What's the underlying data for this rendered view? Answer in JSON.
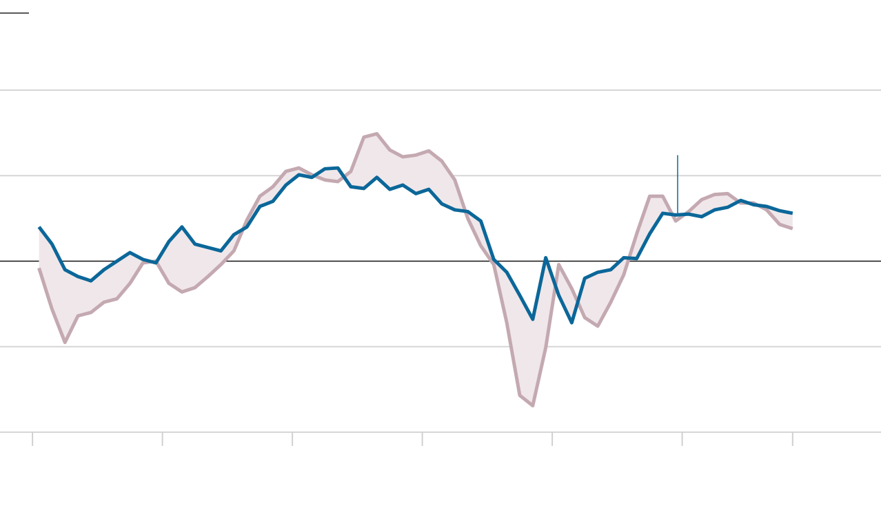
{
  "chart_data": {
    "type": "line",
    "x": [
      1,
      3,
      5,
      7,
      9,
      11,
      13,
      15,
      17,
      19,
      21,
      23,
      25,
      27,
      29,
      31,
      33,
      35,
      37,
      39,
      41,
      43,
      45,
      47,
      49,
      51,
      53,
      55,
      57,
      59,
      61,
      63,
      65,
      67,
      69,
      71,
      73,
      75,
      77,
      79,
      81,
      83,
      85,
      87,
      89,
      91,
      93,
      95,
      97,
      99,
      101,
      103,
      105,
      107,
      109,
      111,
      113,
      115,
      117
    ],
    "series": [
      {
        "color": "#0b6799",
        "values": [
          0.4,
          0.2,
          -0.1,
          -0.18,
          -0.23,
          -0.1,
          0.0,
          0.1,
          0.02,
          -0.02,
          0.23,
          0.4,
          0.2,
          0.16,
          0.12,
          0.31,
          0.4,
          0.64,
          0.7,
          0.89,
          1.01,
          0.98,
          1.08,
          1.09,
          0.87,
          0.85,
          0.98,
          0.84,
          0.89,
          0.79,
          0.84,
          0.67,
          0.6,
          0.58,
          0.47,
          0.02,
          -0.13,
          -0.4,
          -0.68,
          0.04,
          -0.4,
          -0.72,
          -0.2,
          -0.13,
          -0.1,
          0.04,
          0.03,
          0.32,
          0.56,
          0.54,
          0.55,
          0.52,
          0.6,
          0.63,
          0.71,
          0.66,
          0.64,
          0.59,
          0.56
        ]
      },
      {
        "color": "#c4a9b1",
        "values": [
          -0.08,
          -0.56,
          -0.95,
          -0.64,
          -0.6,
          -0.48,
          -0.44,
          -0.26,
          -0.02,
          0.0,
          -0.26,
          -0.36,
          -0.31,
          -0.18,
          -0.04,
          0.12,
          0.48,
          0.76,
          0.87,
          1.05,
          1.09,
          1.01,
          0.95,
          0.93,
          1.05,
          1.45,
          1.49,
          1.3,
          1.22,
          1.24,
          1.29,
          1.17,
          0.95,
          0.5,
          0.18,
          -0.04,
          -0.72,
          -1.57,
          -1.69,
          -1.01,
          -0.04,
          -0.32,
          -0.66,
          -0.76,
          -0.48,
          -0.16,
          0.32,
          0.76,
          0.76,
          0.47,
          0.58,
          0.72,
          0.78,
          0.79,
          0.68,
          0.68,
          0.6,
          0.43,
          0.38
        ]
      }
    ],
    "fill_color": "#f0e7ea",
    "xlim": [
      -5,
      130.6
    ],
    "xticks": [
      0,
      20,
      40,
      60,
      80,
      100,
      117
    ],
    "ylim": [
      -2,
      2
    ],
    "yticks": [
      -2,
      -1,
      0,
      1,
      2
    ],
    "grid": true,
    "marker": {
      "x": 99.3,
      "y": [
        0.56,
        1.24
      ]
    }
  }
}
